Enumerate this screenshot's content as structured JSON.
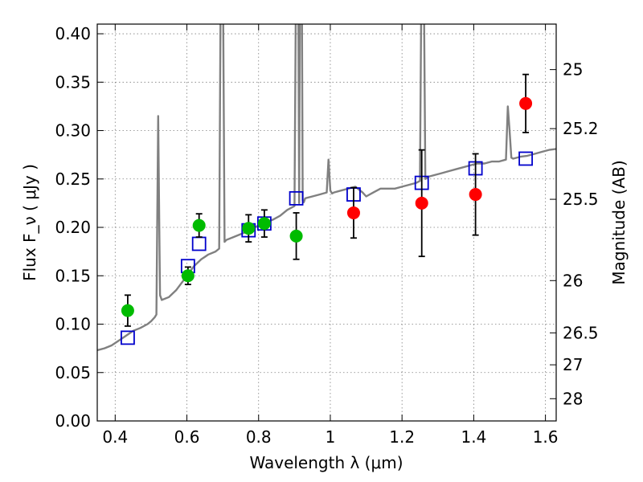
{
  "chart_data": {
    "type": "scatter",
    "xlabel": "Wavelength  λ (μm)",
    "ylabel": "Flux  F_ν  ( μJy )",
    "ylabel_right": "Magnitude (AB)",
    "xlim": [
      0.35,
      1.63
    ],
    "ylim": [
      0.0,
      0.41
    ],
    "grid": true,
    "x_ticks": [
      0.4,
      0.6,
      0.8,
      1.0,
      1.2,
      1.4,
      1.6
    ],
    "x_tick_labels": [
      "0.4",
      "0.6",
      "0.8",
      "1",
      "1.2",
      "1.4",
      "1.6"
    ],
    "y_ticks": [
      0.0,
      0.05,
      0.1,
      0.15,
      0.2,
      0.25,
      0.3,
      0.35,
      0.4
    ],
    "y_tick_labels": [
      "0.00",
      "0.05",
      "0.10",
      "0.15",
      "0.20",
      "0.25",
      "0.30",
      "0.35",
      "0.40"
    ],
    "right_ticks": [
      {
        "label": "25",
        "flux": 0.363
      },
      {
        "label": "25.2",
        "flux": 0.302
      },
      {
        "label": "25.5",
        "flux": 0.229
      },
      {
        "label": "26",
        "flux": 0.145
      },
      {
        "label": "26.5",
        "flux": 0.091
      },
      {
        "label": "27",
        "flux": 0.058
      },
      {
        "label": "28",
        "flux": 0.023
      }
    ],
    "series": [
      {
        "type": "line",
        "color": "#808080",
        "x": [
          0.35,
          0.37,
          0.39,
          0.41,
          0.43,
          0.45,
          0.47,
          0.49,
          0.5,
          0.51,
          0.515,
          0.52,
          0.523,
          0.525,
          0.53,
          0.55,
          0.57,
          0.58,
          0.59,
          0.6,
          0.61,
          0.62,
          0.64,
          0.66,
          0.68,
          0.69,
          0.695,
          0.7,
          0.705,
          0.71,
          0.73,
          0.75,
          0.77,
          0.79,
          0.8,
          0.82,
          0.84,
          0.86,
          0.88,
          0.9,
          0.905,
          0.91,
          0.913,
          0.916,
          0.92,
          0.923,
          0.926,
          0.93,
          0.95,
          0.97,
          0.99,
          0.995,
          1.0,
          1.005,
          1.01,
          1.03,
          1.05,
          1.07,
          1.09,
          1.1,
          1.12,
          1.14,
          1.16,
          1.18,
          1.2,
          1.22,
          1.24,
          1.25,
          1.255,
          1.26,
          1.265,
          1.27,
          1.29,
          1.31,
          1.33,
          1.35,
          1.37,
          1.39,
          1.41,
          1.43,
          1.45,
          1.47,
          1.49,
          1.495,
          1.5,
          1.505,
          1.51,
          1.53,
          1.55,
          1.57,
          1.59,
          1.61,
          1.63
        ],
        "y": [
          0.073,
          0.075,
          0.078,
          0.083,
          0.088,
          0.093,
          0.096,
          0.1,
          0.103,
          0.107,
          0.11,
          0.315,
          0.2,
          0.13,
          0.125,
          0.128,
          0.135,
          0.14,
          0.145,
          0.15,
          0.155,
          0.16,
          0.167,
          0.172,
          0.175,
          0.178,
          0.5,
          0.5,
          0.185,
          0.187,
          0.19,
          0.193,
          0.196,
          0.2,
          0.202,
          0.205,
          0.208,
          0.212,
          0.218,
          0.222,
          0.5,
          0.5,
          0.225,
          0.5,
          0.5,
          0.228,
          0.226,
          0.23,
          0.232,
          0.234,
          0.236,
          0.27,
          0.238,
          0.235,
          0.236,
          0.238,
          0.24,
          0.242,
          0.236,
          0.232,
          0.236,
          0.24,
          0.24,
          0.24,
          0.242,
          0.244,
          0.246,
          0.248,
          0.5,
          0.5,
          0.25,
          0.252,
          0.254,
          0.256,
          0.258,
          0.26,
          0.262,
          0.264,
          0.266,
          0.266,
          0.268,
          0.268,
          0.27,
          0.325,
          0.3,
          0.272,
          0.271,
          0.273,
          0.274,
          0.276,
          0.278,
          0.28,
          0.281
        ]
      },
      {
        "type": "scatter",
        "marker": "square",
        "color": "#0000cc",
        "x": [
          0.435,
          0.603,
          0.634,
          0.772,
          0.816,
          0.905,
          1.065,
          1.255,
          1.405,
          1.545
        ],
        "y": [
          0.086,
          0.16,
          0.183,
          0.197,
          0.204,
          0.23,
          0.234,
          0.246,
          0.261,
          0.271
        ]
      },
      {
        "type": "scatter",
        "marker": "circle",
        "color": "#00bb00",
        "x": [
          0.435,
          0.603,
          0.634,
          0.772,
          0.816,
          0.905
        ],
        "y": [
          0.114,
          0.15,
          0.202,
          0.199,
          0.204,
          0.191
        ],
        "err": [
          0.016,
          0.009,
          0.012,
          0.014,
          0.014,
          0.024
        ]
      },
      {
        "type": "scatter",
        "marker": "circle",
        "color": "#ff0000",
        "x": [
          1.065,
          1.255,
          1.405,
          1.545
        ],
        "y": [
          0.215,
          0.225,
          0.234,
          0.328
        ],
        "err": [
          0.026,
          0.055,
          0.042,
          0.03
        ]
      }
    ]
  }
}
